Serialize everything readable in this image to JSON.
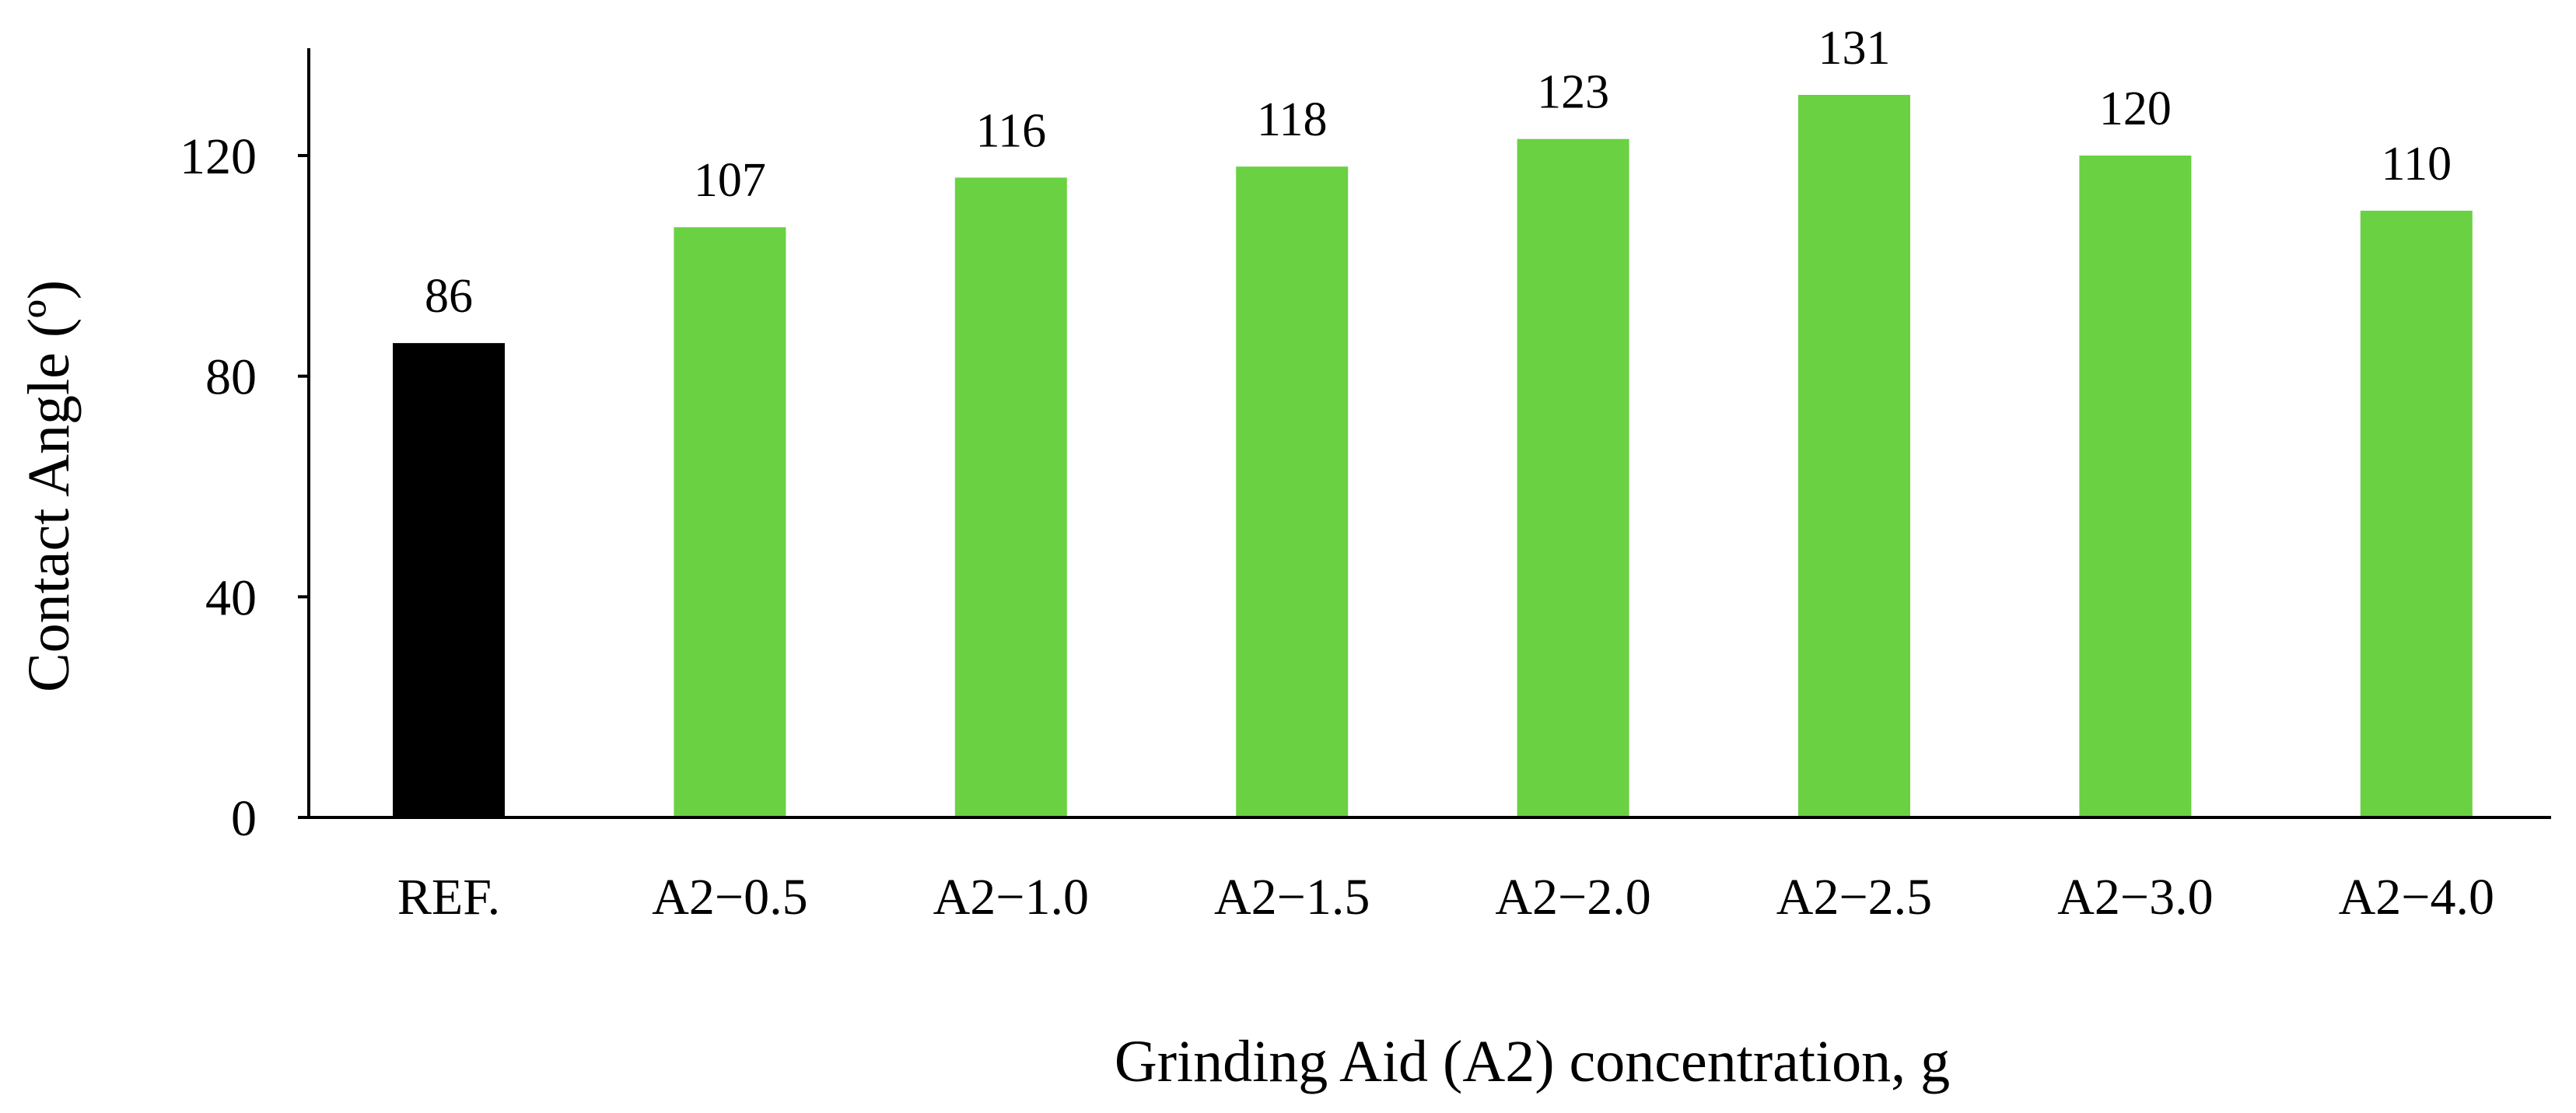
{
  "chart_data": {
    "type": "bar",
    "title": "",
    "xlabel": "Grinding Aid (A2) concentration, g",
    "ylabel": "Contact Angle (º)",
    "ylim": [
      0,
      140
    ],
    "yticks": [
      0,
      40,
      80,
      120
    ],
    "grid": false,
    "legend": "none",
    "categories": [
      "REF.",
      "A2−0.5",
      "A2−1.0",
      "A2−1.5",
      "A2−2.0",
      "A2−2.5",
      "A2−3.0",
      "A2−4.0"
    ],
    "values": [
      86,
      107,
      116,
      118,
      123,
      131,
      120,
      110
    ],
    "data_labels": [
      "86",
      "107",
      "116",
      "118",
      "123",
      "131",
      "120",
      "110"
    ],
    "colors": [
      "#000000",
      "#6ad142",
      "#6ad142",
      "#6ad142",
      "#6ad142",
      "#6ad142",
      "#6ad142",
      "#6ad142"
    ]
  }
}
